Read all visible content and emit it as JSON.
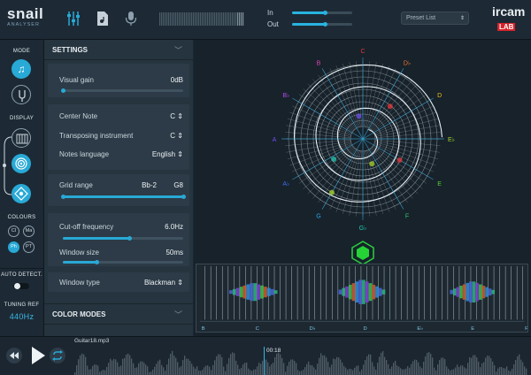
{
  "topbar": {
    "logo": {
      "line1": "snail",
      "line2": "ANALYSER"
    },
    "icons": [
      "sliders-icon",
      "file-music-icon",
      "microphone-icon"
    ],
    "in_label": "In",
    "out_label": "Out",
    "in_level": 0.55,
    "out_level": 0.55,
    "preset_placeholder": "Preset List",
    "brand": {
      "name": "ircam",
      "tag": "LAB"
    }
  },
  "rail": {
    "mode_label": "MODE",
    "display_label": "DISPLAY",
    "colours_label": "COLOURS",
    "colour_buttons": [
      "Cl",
      "Ma",
      "Ph",
      "PT"
    ],
    "active_colour": "Ph",
    "auto_detect_label": "AUTO DETECT.",
    "tuning_ref_label": "TUNING REF",
    "tuning_ref_value": "440Hz"
  },
  "settings": {
    "title": "SETTINGS",
    "visual_gain": {
      "label": "Visual gain",
      "value": "0dB",
      "level": 0.0
    },
    "center_note": {
      "label": "Center Note",
      "value": "C"
    },
    "transposing": {
      "label": "Transposing instrument",
      "value": "C"
    },
    "notes_language": {
      "label": "Notes language",
      "value": "English"
    },
    "grid_range": {
      "label": "Grid range",
      "from": "Bb-2",
      "to": "G8",
      "level": 1.0
    },
    "cutoff": {
      "label": "Cut-off frequency",
      "value": "6.0Hz",
      "level": 0.55
    },
    "window_size": {
      "label": "Window size",
      "value": "50ms",
      "level": 0.28
    },
    "window_type": {
      "label": "Window type",
      "value": "Blackman"
    },
    "color_modes_title": "COLOR MODES"
  },
  "snail": {
    "notes": [
      "C",
      "D♭",
      "D",
      "E♭",
      "E",
      "F",
      "G♭",
      "G",
      "A♭",
      "A",
      "B♭",
      "B"
    ],
    "note_colors": [
      "#e5383b",
      "#f07b2b",
      "#e9c21c",
      "#a8d526",
      "#5ccf36",
      "#2fc56d",
      "#26c7b0",
      "#2aa7e0",
      "#3d6ff0",
      "#6f4ff0",
      "#b44de8",
      "#e245b5"
    ]
  },
  "piano": {
    "notes": [
      "B",
      "C",
      "D♭",
      "D",
      "E♭",
      "E",
      "F"
    ]
  },
  "transport": {
    "file": "Guitar18.mp3",
    "time": "00:18"
  }
}
